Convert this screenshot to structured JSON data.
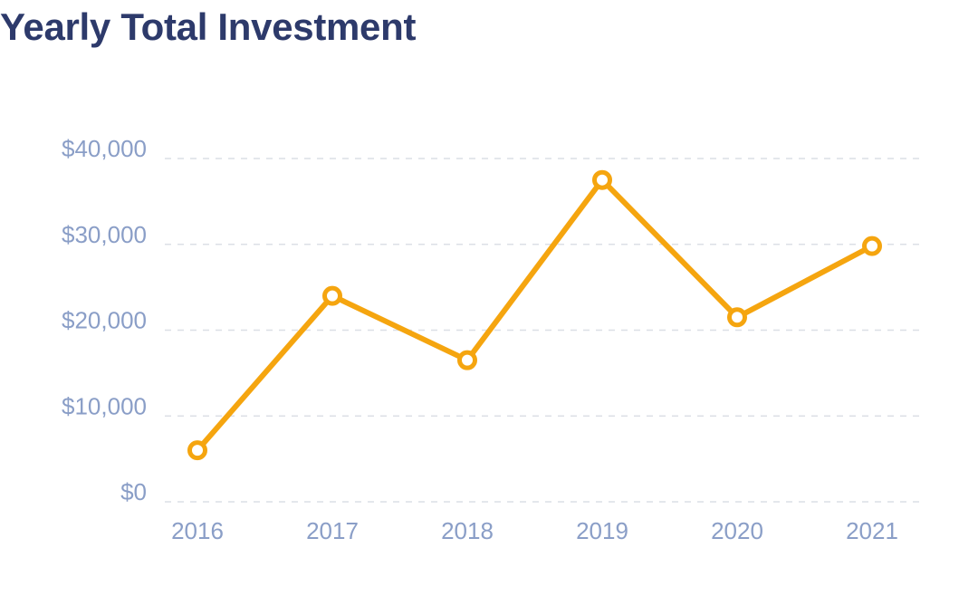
{
  "chart_data": {
    "type": "line",
    "title": "Yearly Total Investment",
    "xlabel": "",
    "ylabel": "",
    "categories": [
      "2016",
      "2017",
      "2018",
      "2019",
      "2020",
      "2021"
    ],
    "series": [
      {
        "values": [
          6000,
          24000,
          16500,
          37500,
          21500,
          29800
        ]
      }
    ],
    "ylim": [
      0,
      40000
    ],
    "yticks": [
      0,
      10000,
      20000,
      30000,
      40000
    ],
    "ytick_labels": [
      "$0",
      "$10,000",
      "$20,000",
      "$30,000",
      "$40,000"
    ],
    "grid": true,
    "line_color": "#f5a50f",
    "marker_fill": "#ffffff",
    "title_color": "#2d3a6b",
    "tick_color": "#8a9ec7",
    "grid_color": "#dcdfe6"
  }
}
